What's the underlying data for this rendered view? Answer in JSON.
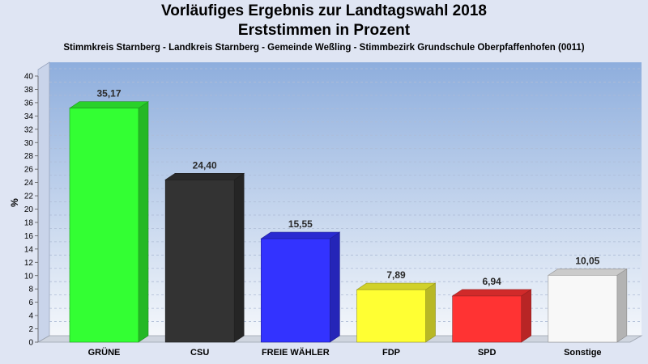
{
  "chart_data": {
    "type": "bar",
    "title": "Vorläufiges Ergebnis zur Landtagswahl 2018",
    "subtitle": "Erststimmen in Prozent",
    "caption": "Stimmkreis Starnberg - Landkreis Starnberg - Gemeinde Weßling - Stimmbezirk Grundschule Oberpfaffenhofen (0011)",
    "xlabel": "",
    "ylabel": "%",
    "ylim": [
      0,
      40
    ],
    "yticks": [
      0,
      2,
      4,
      6,
      8,
      10,
      12,
      14,
      16,
      18,
      20,
      22,
      24,
      26,
      28,
      30,
      32,
      34,
      36,
      38,
      40
    ],
    "grid": true,
    "categories": [
      "GRÜNE",
      "CSU",
      "FREIE WÄHLER",
      "FDP",
      "SPD",
      "Sonstige"
    ],
    "values": [
      35.17,
      24.4,
      15.55,
      7.89,
      6.94,
      10.05
    ],
    "value_labels": [
      "35,17",
      "24,40",
      "15,55",
      "7,89",
      "6,94",
      "10,05"
    ],
    "colors": [
      "#33ff33",
      "#333333",
      "#3333ff",
      "#ffff33",
      "#ff3333",
      "#f8f8f8"
    ]
  }
}
